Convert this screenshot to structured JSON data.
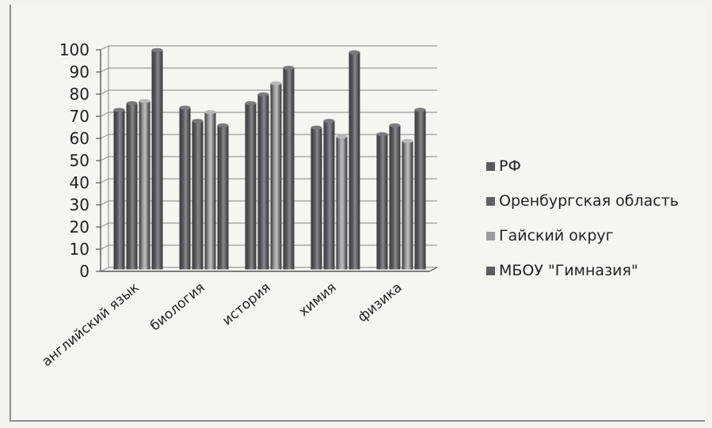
{
  "chart_data": {
    "type": "bar",
    "categories": [
      "английский язык",
      "биология",
      "история",
      "химия",
      "физика"
    ],
    "series": [
      {
        "name": "РФ",
        "values": [
          72,
          73,
          75,
          64,
          61
        ]
      },
      {
        "name": "Оренбургская область",
        "values": [
          75,
          67,
          79,
          67,
          65
        ]
      },
      {
        "name": "Гайский округ",
        "values": [
          76,
          71,
          84,
          60,
          58
        ]
      },
      {
        "name": "МБОУ \"Гимназия\"",
        "values": [
          99,
          65,
          91,
          98,
          72
        ]
      }
    ],
    "ylim": [
      0,
      100
    ],
    "yticks": [
      "0",
      "10",
      "20",
      "30",
      "40",
      "50",
      "60",
      "70",
      "80",
      "90",
      "100"
    ],
    "grid": true,
    "legend_position": "right",
    "colors": [
      "#5a5a5e",
      "#5f5f63",
      "#9c9c9e",
      "#5c5c60"
    ]
  }
}
